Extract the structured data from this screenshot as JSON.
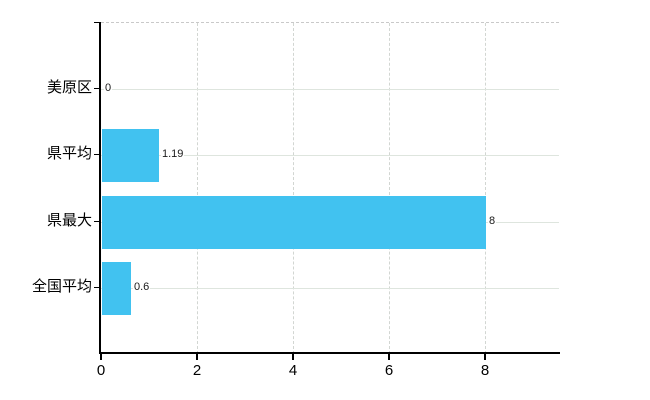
{
  "chart_data": {
    "type": "bar",
    "orientation": "horizontal",
    "title": "",
    "xlabel": "",
    "ylabel": "",
    "categories": [
      "美原区",
      "県平均",
      "県最大",
      "全国平均"
    ],
    "values": [
      0,
      1.19,
      8,
      0.6
    ],
    "value_labels": [
      "0",
      "1.19",
      "8",
      "0.6"
    ],
    "xlim": [
      0,
      9.54
    ],
    "xticks": [
      0,
      2,
      4,
      6,
      8
    ],
    "xtick_labels": [
      "0",
      "2",
      "4",
      "6",
      "8"
    ],
    "grid": true,
    "legend": "none",
    "colors": {
      "bar": "#41C2F0",
      "axis": "#000000",
      "grid_vertical": "#D2D6D2",
      "grid_horizontal": "#DEE5DE",
      "plot_top_border": "#C9C9C9",
      "label_text": "#000000",
      "value_text": "#1A1A1A",
      "background": "#FFFFFF"
    }
  }
}
